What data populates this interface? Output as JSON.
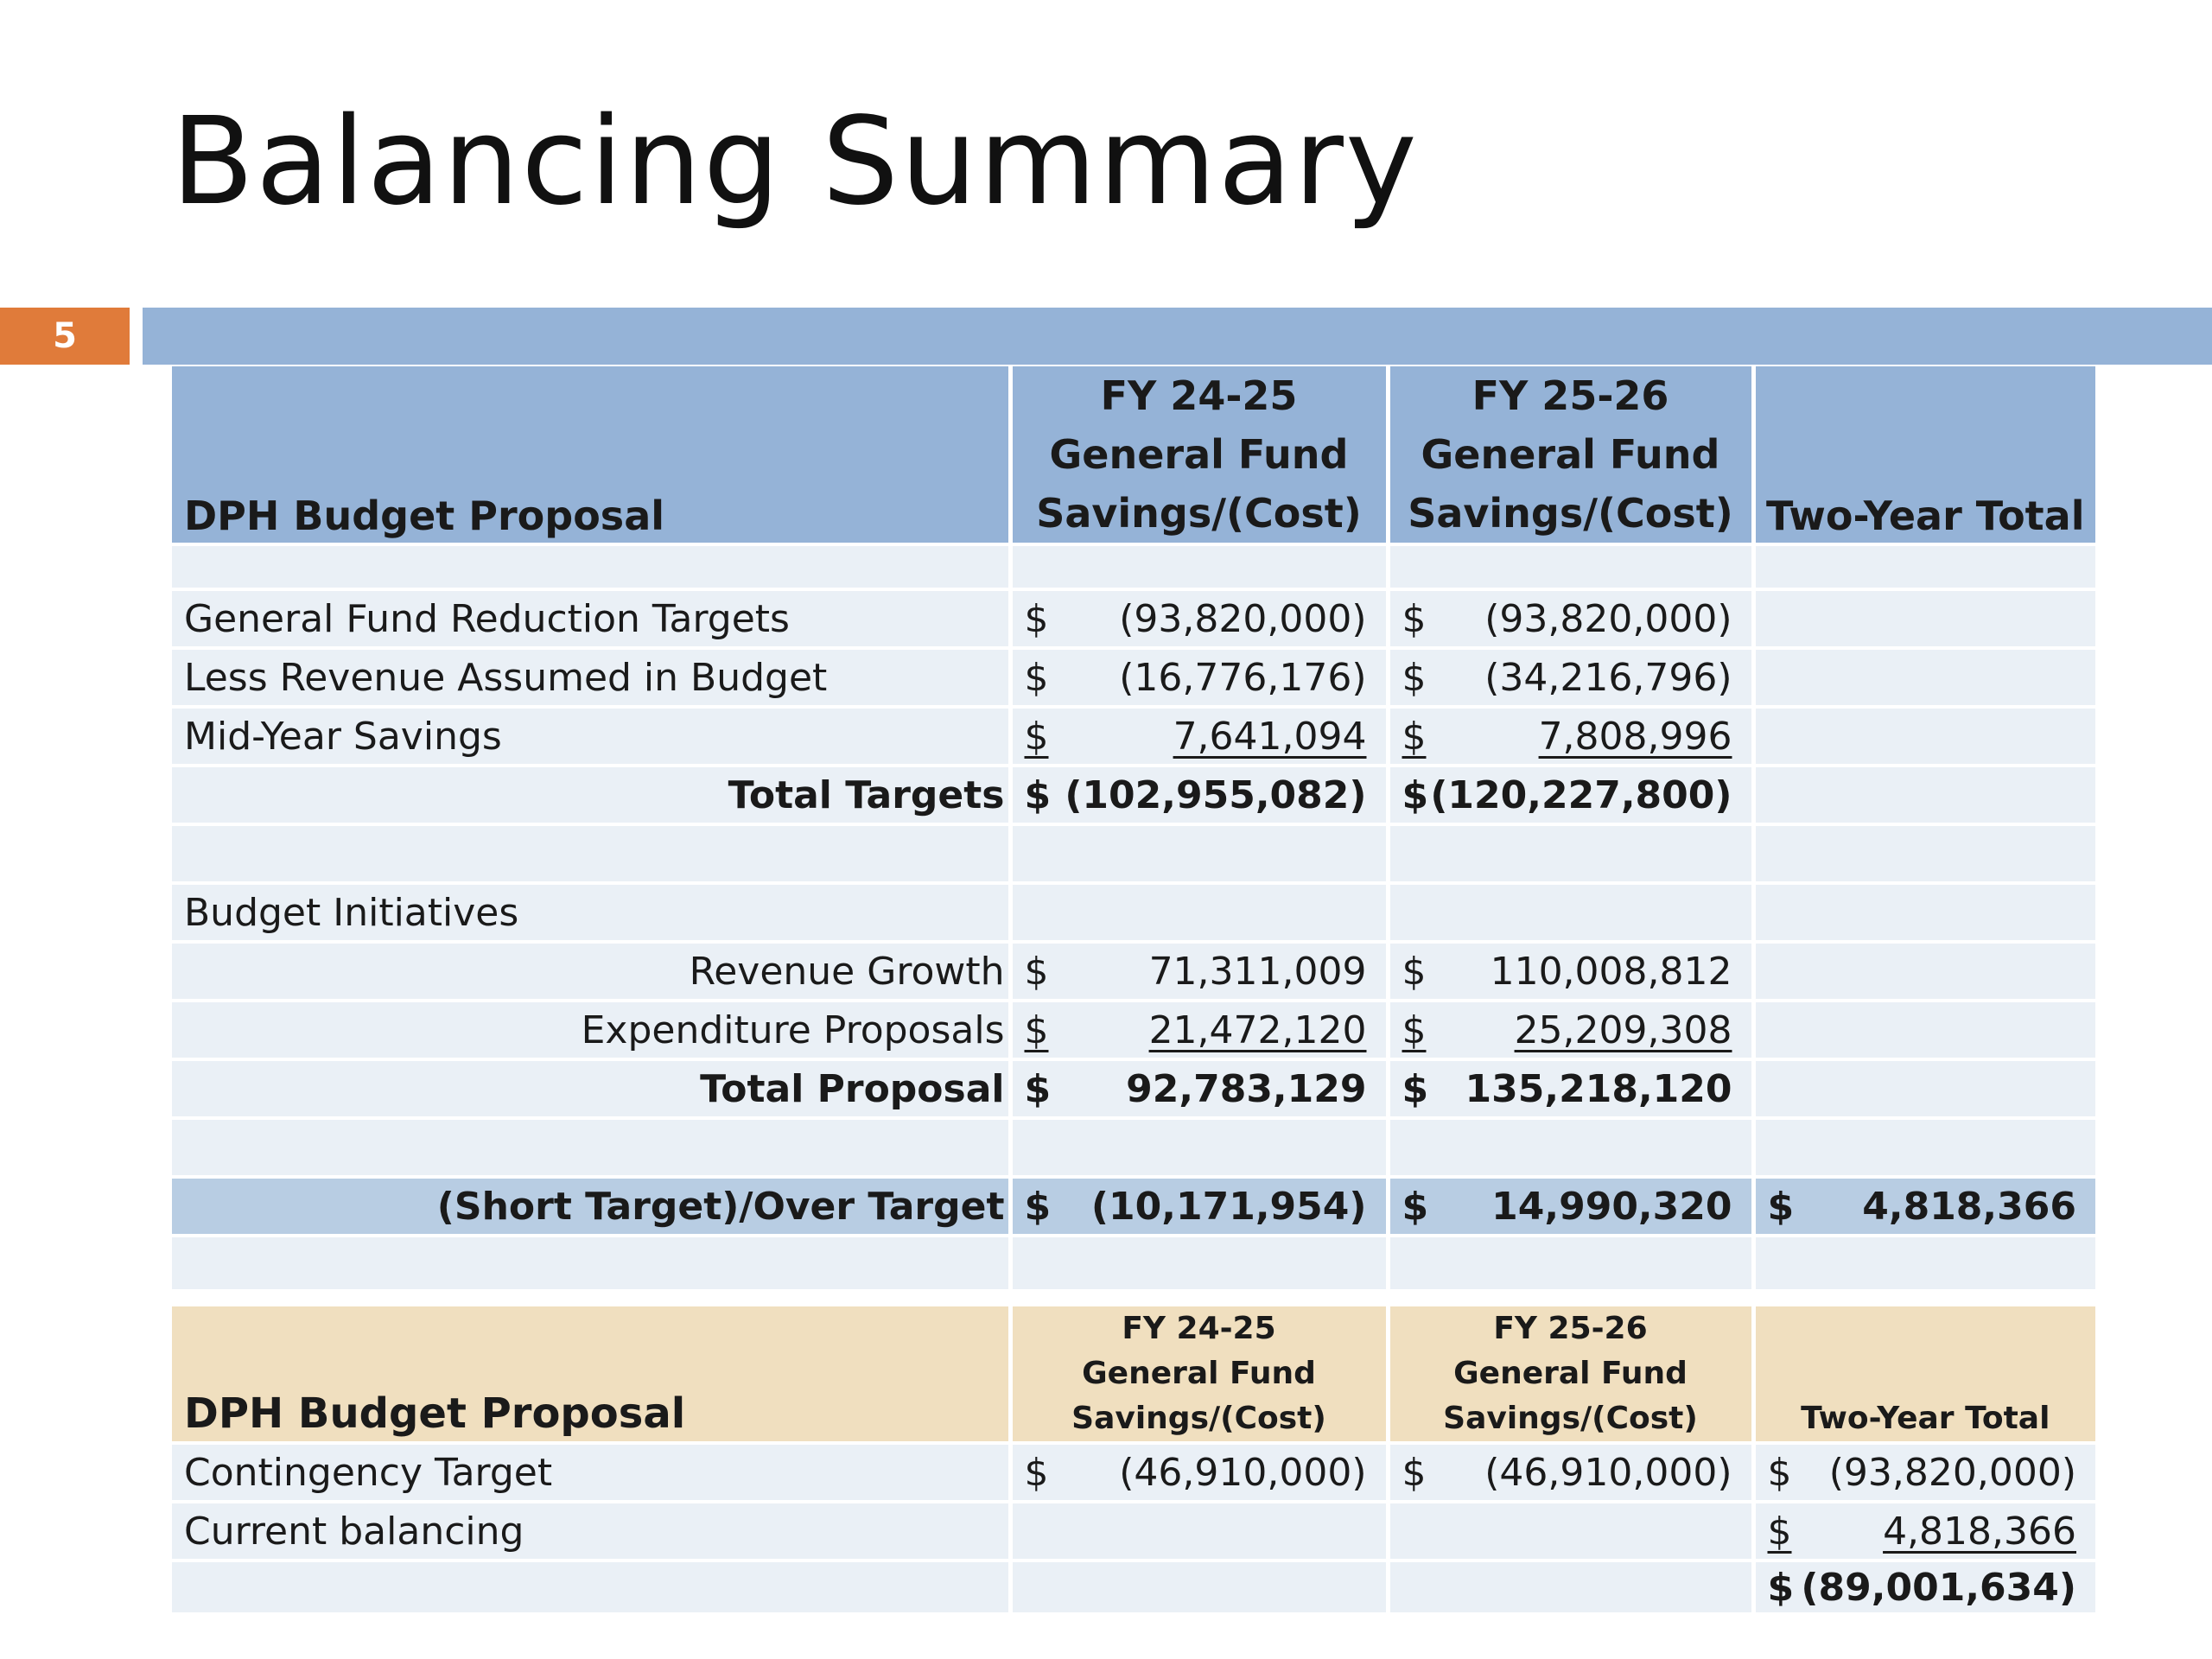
{
  "slide": {
    "title": "Balancing Summary",
    "number": "5"
  },
  "main_table": {
    "header": {
      "caption": "DPH Budget Proposal",
      "fy1": [
        "FY 24-25",
        "General Fund",
        "Savings/(Cost)"
      ],
      "fy2": [
        "FY 25-26",
        "General Fund",
        "Savings/(Cost)"
      ],
      "two_year": "Two-Year Total"
    },
    "rows": {
      "reduction_targets": {
        "label": "General Fund Reduction Targets",
        "fy1_cur": "$",
        "fy1": "(93,820,000)",
        "fy2_cur": "$",
        "fy2": "(93,820,000)"
      },
      "less_revenue": {
        "label": "Less Revenue Assumed in Budget",
        "fy1_cur": "$",
        "fy1": "(16,776,176)",
        "fy2_cur": "$",
        "fy2": "(34,216,796)"
      },
      "mid_year": {
        "label": "Mid-Year Savings",
        "fy1_cur": "$",
        "fy1": "7,641,094",
        "fy2_cur": "$",
        "fy2": "7,808,996"
      },
      "total_targets": {
        "label": "Total Targets",
        "fy1_cur": "$",
        "fy1": "(102,955,082)",
        "fy2_cur": "$",
        "fy2": "(120,227,800)"
      },
      "budget_initiatives": {
        "label": "Budget Initiatives"
      },
      "revenue_growth": {
        "label": "Revenue Growth",
        "fy1_cur": "$",
        "fy1": "71,311,009",
        "fy2_cur": "$",
        "fy2": "110,008,812"
      },
      "expenditure_proposals": {
        "label": "Expenditure Proposals",
        "fy1_cur": "$",
        "fy1": "21,472,120",
        "fy2_cur": "$",
        "fy2": "25,209,308"
      },
      "total_proposal": {
        "label": "Total Proposal",
        "fy1_cur": "$",
        "fy1": "92,783,129",
        "fy2_cur": "$",
        "fy2": "135,218,120"
      },
      "short_over": {
        "label": "(Short Target)/Over Target",
        "fy1_cur": "$",
        "fy1": "(10,171,954)",
        "fy2_cur": "$",
        "fy2": "14,990,320",
        "two_cur": "$",
        "two": "4,818,366"
      }
    }
  },
  "contingency_table": {
    "header": {
      "caption": "DPH Budget Proposal",
      "fy1": [
        "FY 24-25",
        "General Fund",
        "Savings/(Cost)"
      ],
      "fy2": [
        "FY 25-26",
        "General Fund",
        "Savings/(Cost)"
      ],
      "two_year": "Two-Year Total"
    },
    "rows": {
      "contingency_target": {
        "label": "Contingency Target",
        "fy1_cur": "$",
        "fy1": "(46,910,000)",
        "fy2_cur": "$",
        "fy2": "(46,910,000)",
        "two_cur": "$",
        "two": "(93,820,000)"
      },
      "current_balancing": {
        "label": "Current balancing",
        "two_cur": "$",
        "two": "4,818,366"
      },
      "net": {
        "two_cur": "$",
        "two": "(89,001,634)"
      }
    }
  },
  "colors": {
    "accent_orange": "#e07b3a",
    "header_blue": "#95b3d7",
    "row_light": "#eaf0f6",
    "highlight_blue": "#b8cde3",
    "tan": "#f0dfbf"
  }
}
